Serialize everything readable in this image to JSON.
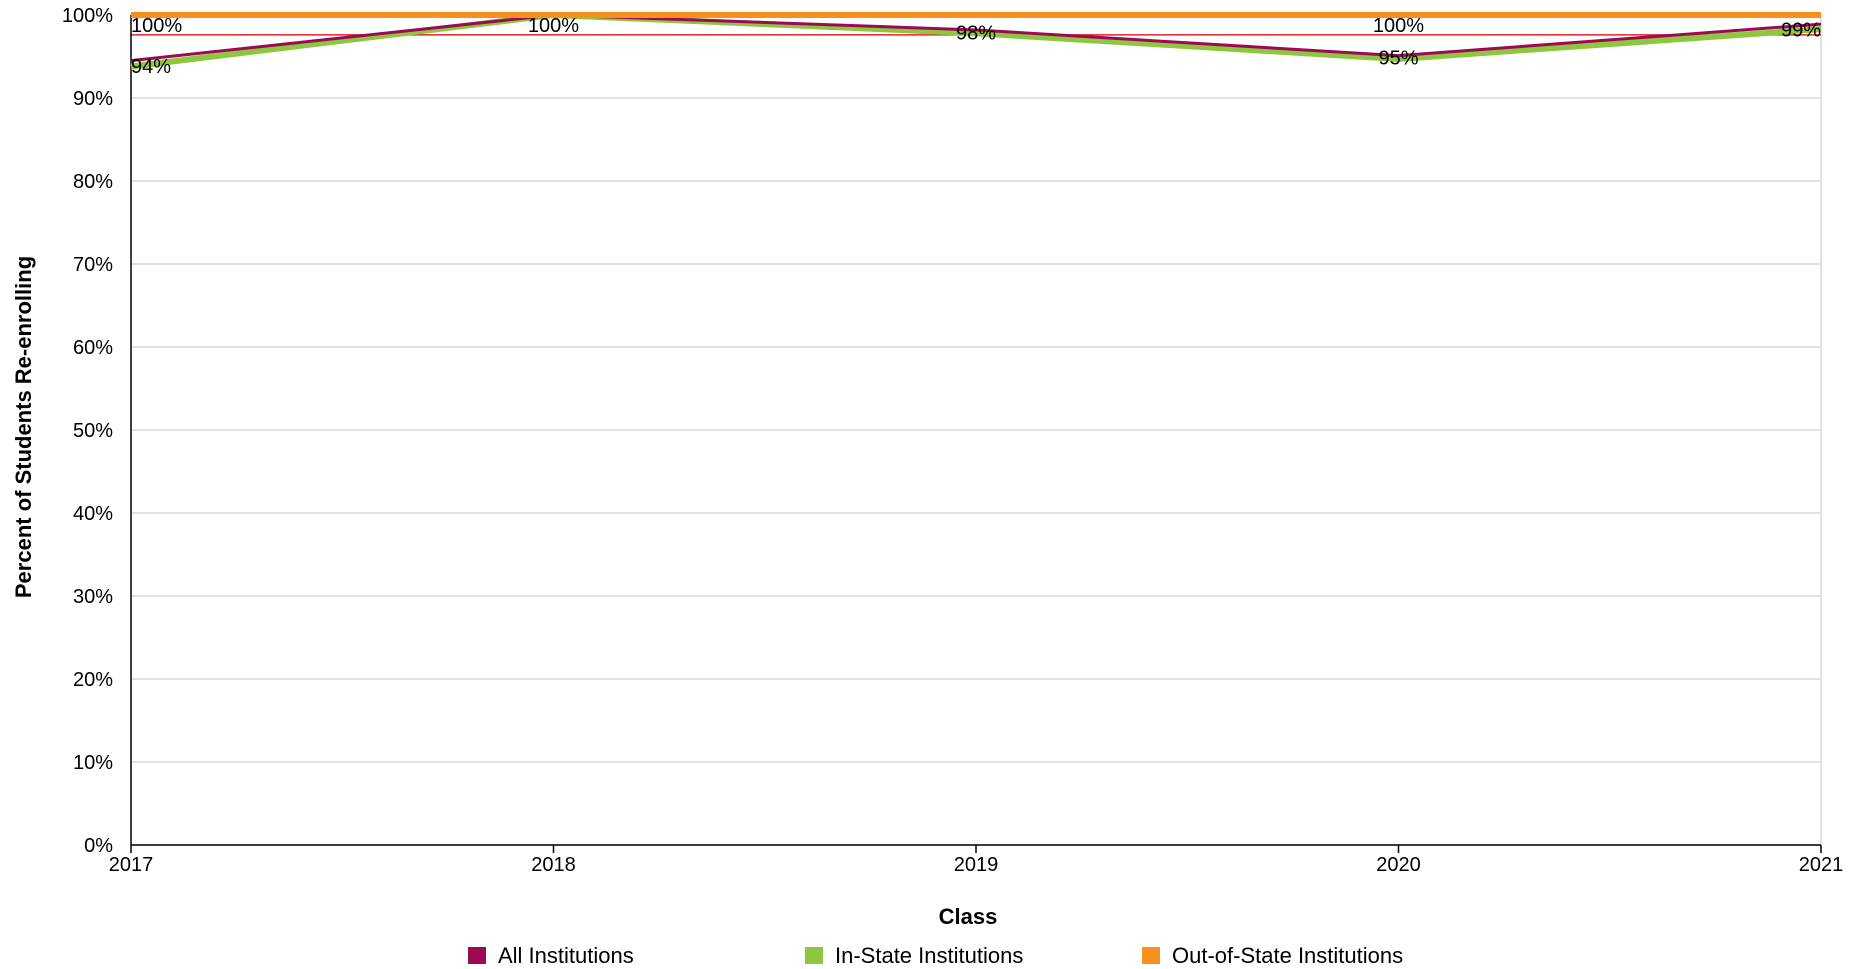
{
  "chart_data": {
    "type": "line",
    "xlabel": "Class",
    "ylabel": "Percent of Students Re-enrolling",
    "categories": [
      "2017",
      "2018",
      "2019",
      "2020",
      "2021"
    ],
    "ylim": [
      0,
      100
    ],
    "y_ticks": [
      0,
      10,
      20,
      30,
      40,
      50,
      60,
      70,
      80,
      90,
      100
    ],
    "y_tick_suffix": "%",
    "grid": true,
    "legend_position": "bottom",
    "reference_line": {
      "value": 97.6,
      "color": "#e8212b"
    },
    "series": [
      {
        "name": "All Institutions",
        "color": "#9b0a53",
        "values": [
          94.5,
          100,
          98.2,
          95.1,
          98.9
        ]
      },
      {
        "name": "In-State Institutions",
        "color": "#8dc63f",
        "values": [
          93.8,
          100,
          97.8,
          94.7,
          98.3
        ]
      },
      {
        "name": "Out-of-State Institutions",
        "color": "#f7901e",
        "values": [
          100,
          100,
          100,
          100,
          100
        ]
      }
    ],
    "data_labels": [
      {
        "category": "2017",
        "text": "100%"
      },
      {
        "category": "2017",
        "text": "94%"
      },
      {
        "category": "2018",
        "text": "100%"
      },
      {
        "category": "2019",
        "text": "98%"
      },
      {
        "category": "2020",
        "text": "100%"
      },
      {
        "category": "2020",
        "text": "95%"
      },
      {
        "category": "2021",
        "text": "99%"
      }
    ]
  }
}
